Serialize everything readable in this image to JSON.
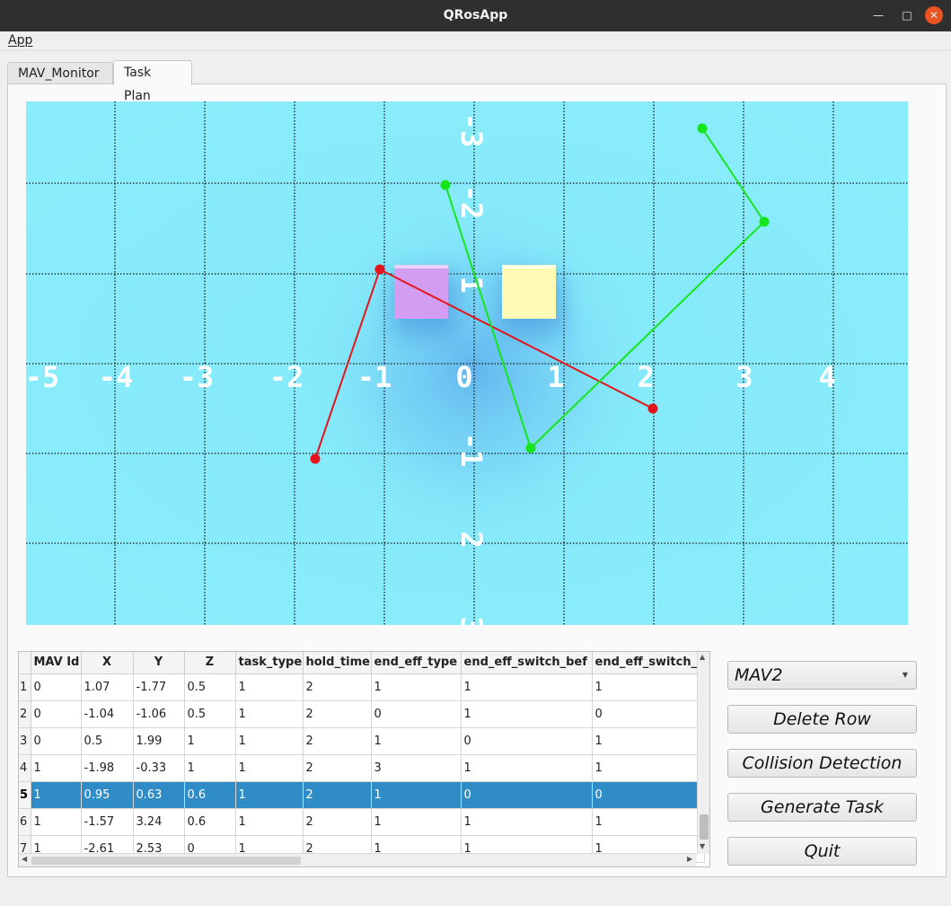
{
  "window": {
    "title": "QRosApp",
    "min_glyph": "—",
    "max_glyph": "□",
    "close_glyph": "✕"
  },
  "menu": {
    "app": "App"
  },
  "tabs": [
    {
      "label": "MAV_Monitor",
      "active": false
    },
    {
      "label": "Task Plan",
      "active": true
    }
  ],
  "plot": {
    "background_color": "#84e9f9",
    "x_ticks": [
      "-5",
      "-4",
      "-3",
      "-2",
      "-1",
      "0",
      "1",
      "2",
      "3",
      "4"
    ],
    "y_ticks": [
      "-3",
      "-2",
      "-1",
      "1",
      "2",
      "3"
    ],
    "obstacles": [
      {
        "color": "#d39ef2"
      },
      {
        "color": "#fdfbb6"
      }
    ],
    "paths": [
      {
        "color": "#e5141c"
      },
      {
        "color": "#16e51c"
      }
    ]
  },
  "table": {
    "columns": [
      "MAV Id",
      "X",
      "Y",
      "Z",
      "task_type",
      "hold_time",
      "end_eff_type",
      "end_eff_switch_bef",
      "end_eff_switch_"
    ],
    "rows": [
      {
        "num": "1",
        "cells": [
          "0",
          "1.07",
          "-1.77",
          "0.5",
          "1",
          "2",
          "1",
          "1",
          "1"
        ]
      },
      {
        "num": "2",
        "cells": [
          "0",
          "-1.04",
          "-1.06",
          "0.5",
          "1",
          "2",
          "0",
          "1",
          "0"
        ]
      },
      {
        "num": "3",
        "cells": [
          "0",
          "0.5",
          "1.99",
          "1",
          "1",
          "2",
          "1",
          "0",
          "1"
        ]
      },
      {
        "num": "4",
        "cells": [
          "1",
          "-1.98",
          "-0.33",
          "1",
          "1",
          "2",
          "3",
          "1",
          "1"
        ]
      },
      {
        "num": "5",
        "cells": [
          "1",
          "0.95",
          "0.63",
          "0.6",
          "1",
          "2",
          "1",
          "0",
          "0"
        ],
        "selected": true
      },
      {
        "num": "6",
        "cells": [
          "1",
          "-1.57",
          "3.24",
          "0.6",
          "1",
          "2",
          "1",
          "1",
          "1"
        ]
      },
      {
        "num": "7",
        "cells": [
          "1",
          "-2.61",
          "2.53",
          "0",
          "1",
          "2",
          "1",
          "1",
          "1"
        ]
      }
    ],
    "selection_color": "#308cc6"
  },
  "controls": {
    "mav_select": "MAV2",
    "delete_row": "Delete Row",
    "collision_detection": "Collision Detection",
    "generate_task": "Generate Task",
    "quit": "Quit"
  }
}
